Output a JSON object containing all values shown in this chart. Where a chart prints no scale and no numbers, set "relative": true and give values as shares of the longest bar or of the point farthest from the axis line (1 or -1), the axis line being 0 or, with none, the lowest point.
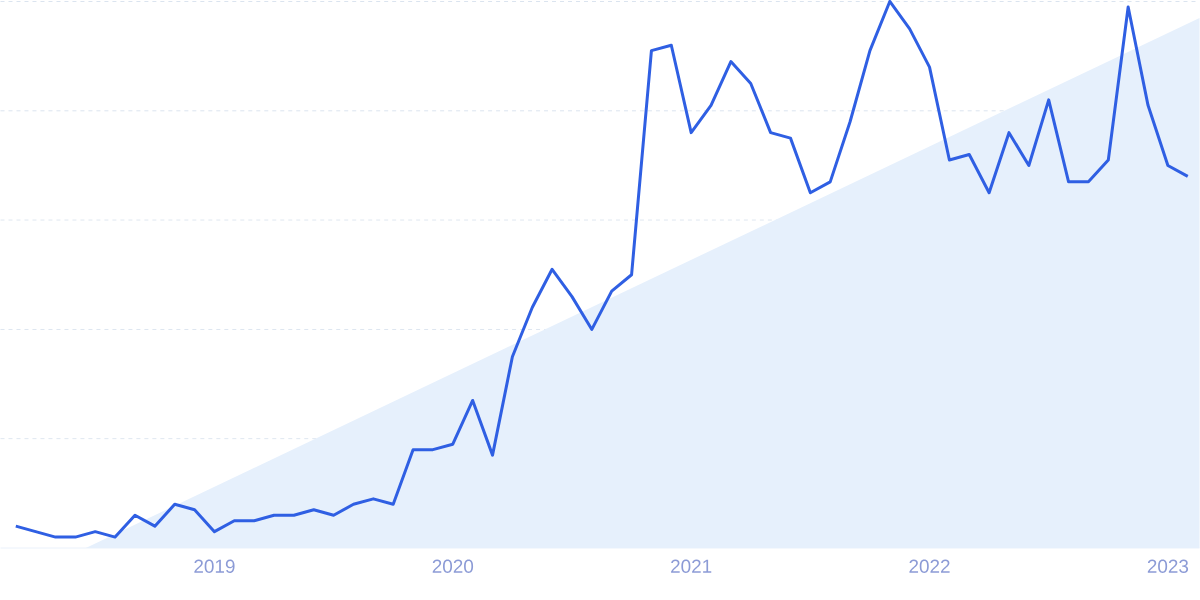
{
  "chart_data": {
    "type": "line",
    "relative": true,
    "x": [
      "2018-03",
      "2018-04",
      "2018-05",
      "2018-06",
      "2018-07",
      "2018-08",
      "2018-09",
      "2018-10",
      "2018-11",
      "2018-12",
      "2019-01",
      "2019-02",
      "2019-03",
      "2019-04",
      "2019-05",
      "2019-06",
      "2019-07",
      "2019-08",
      "2019-09",
      "2019-10",
      "2019-11",
      "2019-12",
      "2020-01",
      "2020-02",
      "2020-03",
      "2020-04",
      "2020-05",
      "2020-06",
      "2020-07",
      "2020-08",
      "2020-09",
      "2020-10",
      "2020-11",
      "2020-12",
      "2021-01",
      "2021-02",
      "2021-03",
      "2021-04",
      "2021-05",
      "2021-06",
      "2021-07",
      "2021-08",
      "2021-09",
      "2021-10",
      "2021-11",
      "2021-12",
      "2022-01",
      "2022-02",
      "2022-03",
      "2022-04",
      "2022-05",
      "2022-06",
      "2022-07",
      "2022-08",
      "2022-09",
      "2022-10",
      "2022-11",
      "2022-12",
      "2023-01",
      "2023-02"
    ],
    "series": [
      {
        "type": "area",
        "color": "#e6f0fc",
        "x": [
          "2018-06-17",
          "2023-02-19"
        ],
        "values": [
          0,
          0.97
        ]
      },
      {
        "color": "#2f5fe3",
        "values": [
          0.04,
          0.03,
          0.02,
          0.02,
          0.03,
          0.02,
          0.06,
          0.04,
          0.08,
          0.07,
          0.03,
          0.05,
          0.05,
          0.06,
          0.06,
          0.07,
          0.06,
          0.08,
          0.09,
          0.08,
          0.18,
          0.18,
          0.19,
          0.27,
          0.17,
          0.35,
          0.44,
          0.51,
          0.46,
          0.4,
          0.47,
          0.5,
          0.91,
          0.92,
          0.76,
          0.81,
          0.89,
          0.85,
          0.76,
          0.75,
          0.65,
          0.67,
          0.78,
          0.91,
          1,
          0.95,
          0.88,
          0.71,
          0.72,
          0.65,
          0.76,
          0.7,
          0.82,
          0.67,
          0.67,
          0.71,
          0.99,
          0.81,
          0.7,
          0.68
        ]
      }
    ],
    "xlim": [
      "2018-02-08",
      "2023-02-19"
    ],
    "xticks": [
      "2019",
      "2020",
      "2021",
      "2022",
      "2023"
    ],
    "ref_lines": [
      {
        "axis": "y",
        "value": 0.2,
        "color": "#dbe4ef",
        "line_style": "dashed"
      },
      {
        "axis": "y",
        "value": 0.4,
        "color": "#dbe4ef",
        "line_style": "dashed"
      },
      {
        "axis": "y",
        "value": 0.6,
        "color": "#dbe4ef",
        "line_style": "dashed"
      },
      {
        "axis": "y",
        "value": 0.8,
        "color": "#dbe4ef",
        "line_style": "dashed"
      },
      {
        "axis": "y",
        "value": 1.0,
        "color": "#dbe4ef",
        "line_style": "dashed"
      }
    ],
    "marker": "none"
  }
}
